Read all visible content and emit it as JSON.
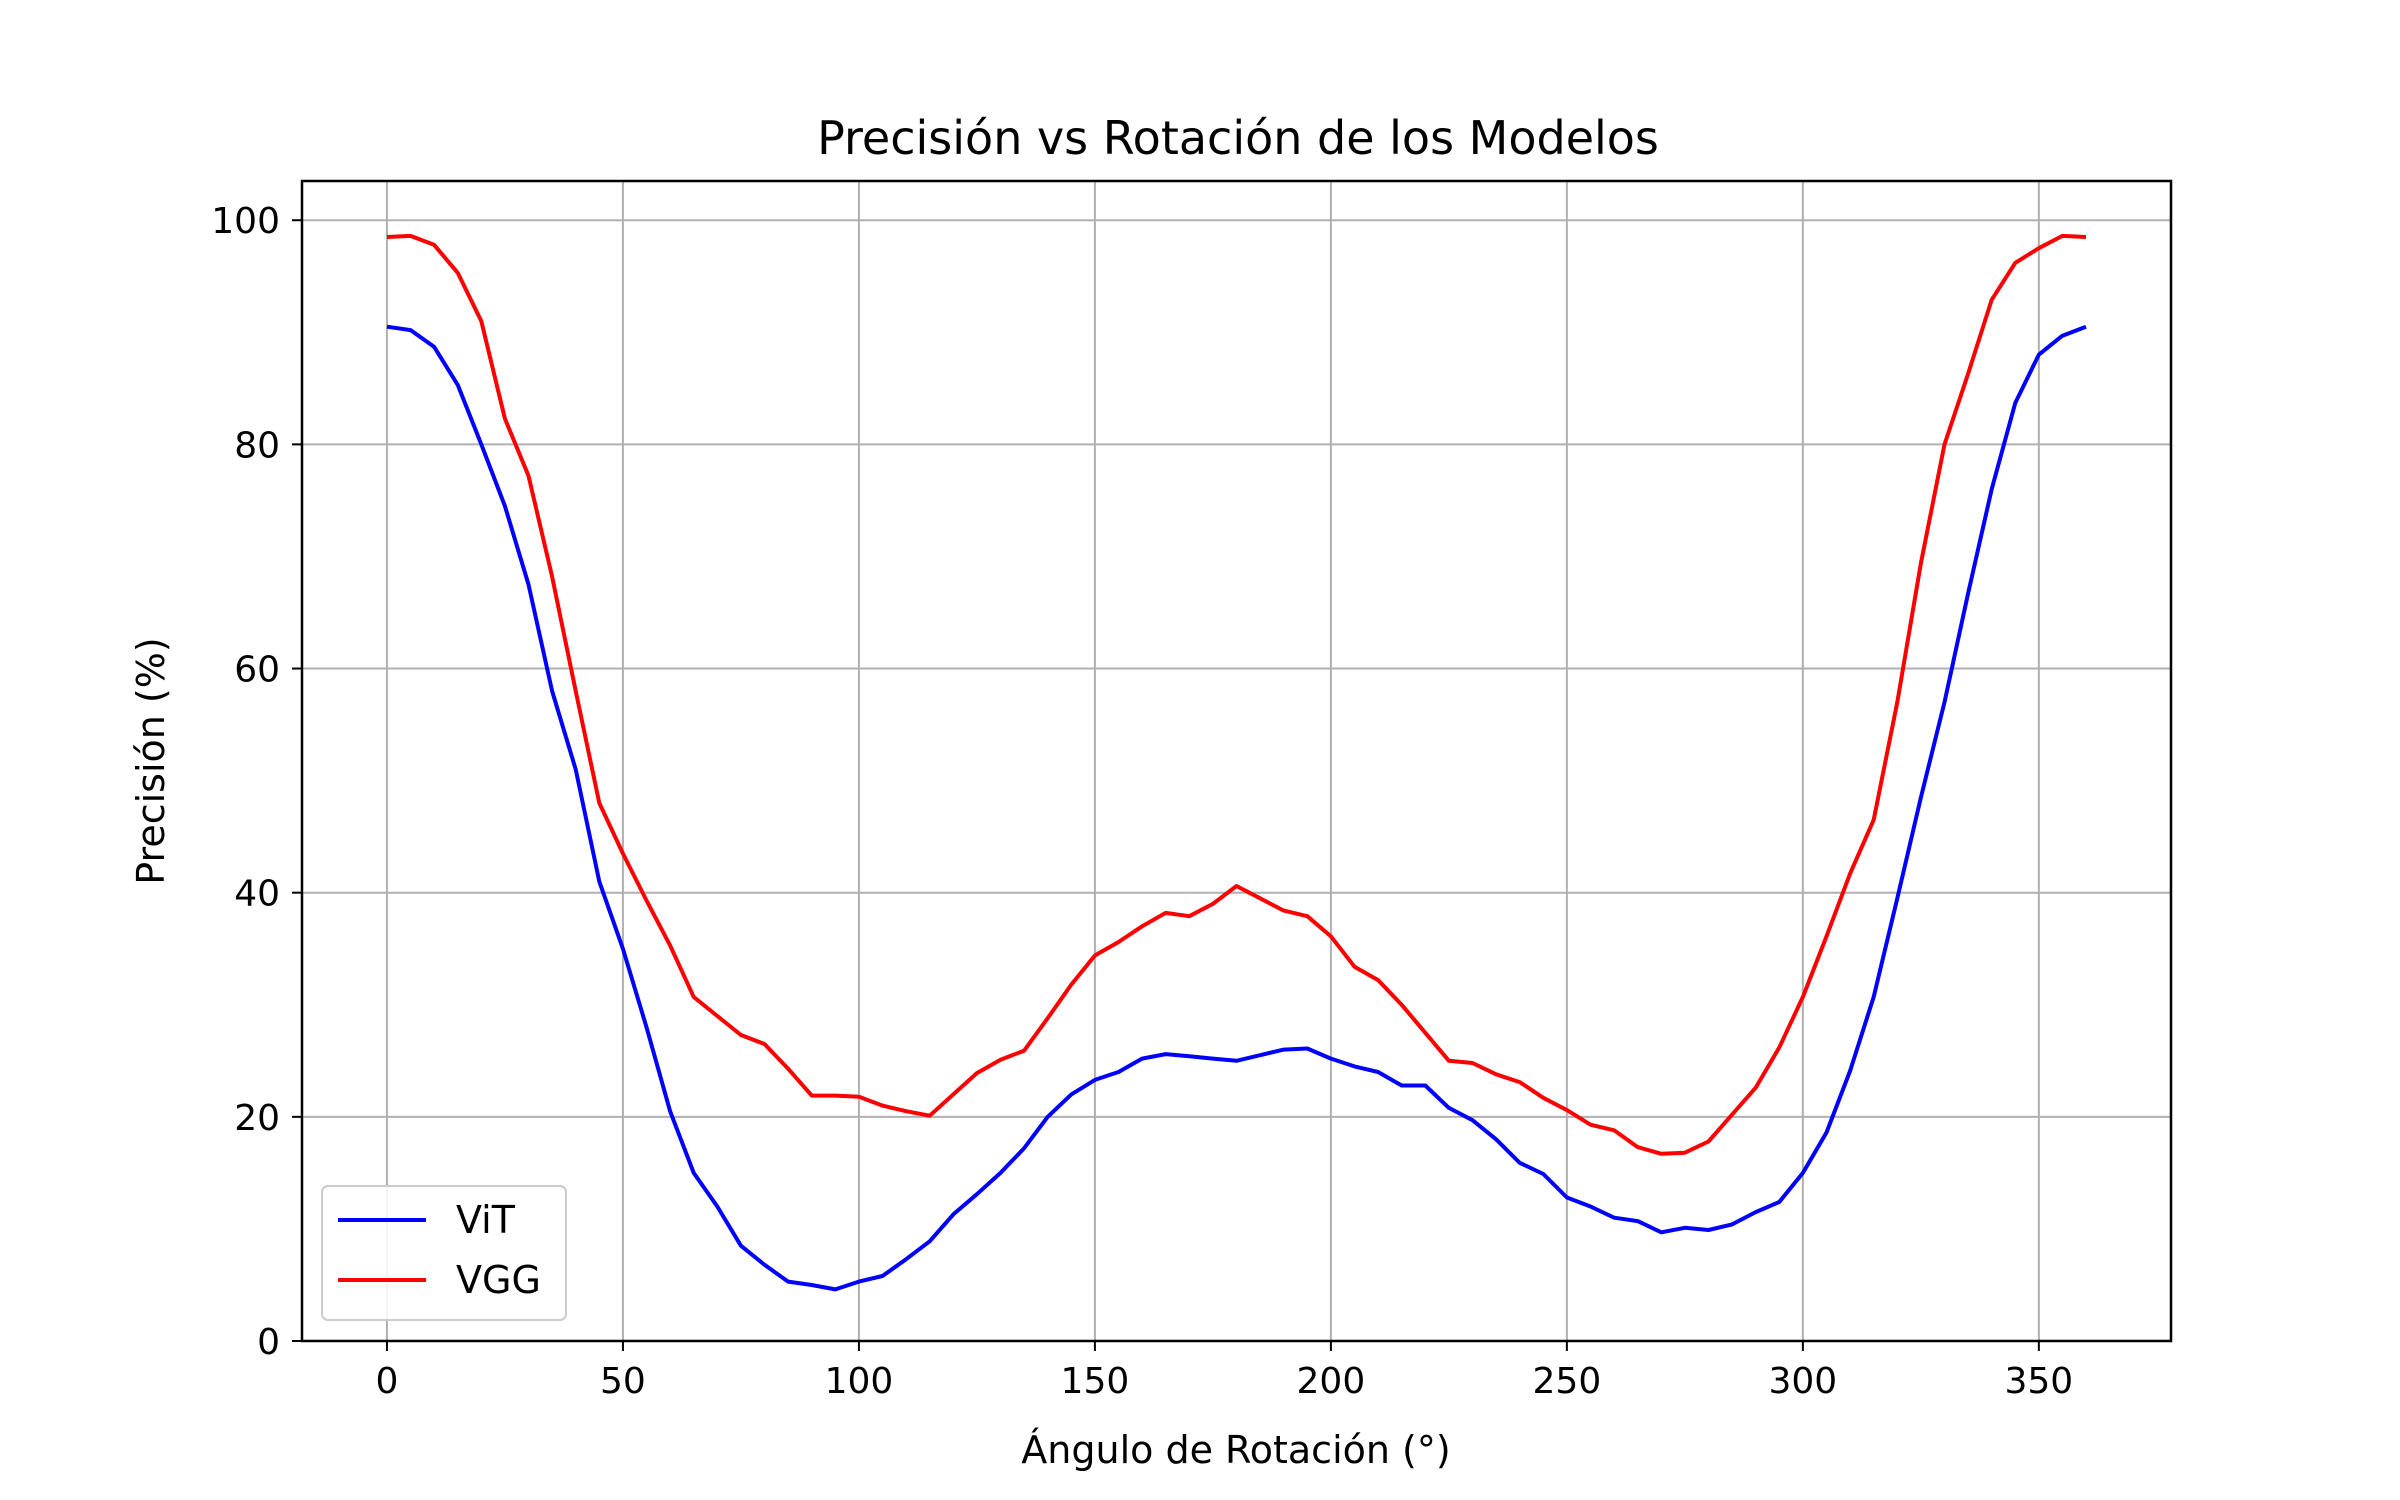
{
  "chart_data": {
    "type": "line",
    "title": "Precisión vs Rotación de los Modelos",
    "xlabel": "Ángulo de Rotación (°)",
    "ylabel": "Precisión (%)",
    "xlim": [
      -18,
      378
    ],
    "ylim": [
      0,
      103.5
    ],
    "xticks": [
      0,
      50,
      100,
      150,
      200,
      250,
      300,
      350
    ],
    "yticks": [
      0,
      20,
      40,
      60,
      80,
      100
    ],
    "grid": true,
    "legend_position": "lower-left",
    "x": [
      0,
      5,
      10,
      15,
      20,
      25,
      30,
      35,
      40,
      45,
      50,
      55,
      60,
      65,
      70,
      75,
      80,
      85,
      90,
      95,
      100,
      105,
      110,
      115,
      120,
      125,
      130,
      135,
      140,
      145,
      150,
      155,
      160,
      165,
      170,
      175,
      180,
      185,
      190,
      195,
      200,
      205,
      210,
      215,
      220,
      225,
      230,
      235,
      240,
      245,
      250,
      255,
      260,
      265,
      270,
      275,
      280,
      285,
      290,
      295,
      300,
      305,
      310,
      315,
      320,
      325,
      330,
      335,
      340,
      345,
      350,
      355,
      360
    ],
    "series": [
      {
        "name": "ViT",
        "color": "#0000ff",
        "values": [
          90.5,
          90.2,
          88.7,
          85.3,
          80.0,
          74.5,
          67.5,
          58.0,
          51.0,
          41.0,
          35.0,
          28.0,
          20.5,
          15.0,
          12.0,
          8.5,
          6.8,
          5.3,
          5.0,
          4.6,
          5.3,
          5.8,
          7.3,
          8.9,
          11.3,
          13.1,
          15.0,
          17.2,
          20.0,
          22.0,
          23.3,
          24.0,
          25.2,
          25.6,
          25.4,
          25.2,
          25.0,
          25.5,
          26.0,
          26.1,
          25.2,
          24.5,
          24.0,
          22.8,
          22.8,
          20.8,
          19.7,
          18.0,
          15.9,
          14.9,
          12.8,
          12.0,
          11.0,
          10.7,
          9.7,
          10.1,
          9.9,
          10.4,
          11.5,
          12.4,
          15.0,
          18.6,
          24.1,
          30.7,
          39.5,
          48.5,
          57.0,
          66.7,
          76.0,
          83.7,
          88.0,
          89.7,
          90.5
        ]
      },
      {
        "name": "VGG",
        "color": "#ff0000",
        "values": [
          98.5,
          98.6,
          97.8,
          95.3,
          91.0,
          82.3,
          77.2,
          68.2,
          58.0,
          48.0,
          43.5,
          39.3,
          35.3,
          30.7,
          29.0,
          27.3,
          26.5,
          24.3,
          21.9,
          21.9,
          21.8,
          21.0,
          20.5,
          20.1,
          22.0,
          23.9,
          25.1,
          25.9,
          28.8,
          31.8,
          34.4,
          35.6,
          37.0,
          38.2,
          37.9,
          39.0,
          40.6,
          39.5,
          38.4,
          37.9,
          36.1,
          33.4,
          32.2,
          30.0,
          27.5,
          25.0,
          24.8,
          23.8,
          23.1,
          21.7,
          20.6,
          19.3,
          18.8,
          17.3,
          16.7,
          16.8,
          17.8,
          20.2,
          22.6,
          26.2,
          30.7,
          36.1,
          41.7,
          46.5,
          57.0,
          69.4,
          80.0,
          86.3,
          92.9,
          96.2,
          97.5,
          98.6,
          98.5
        ]
      }
    ]
  }
}
